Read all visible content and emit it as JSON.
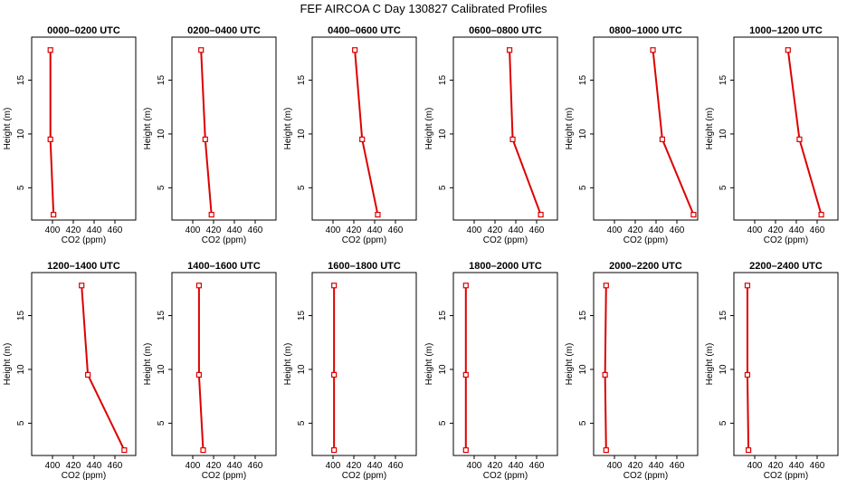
{
  "figure": {
    "title": "FEF AIRCOA C  Day 130827  Calibrated Profiles"
  },
  "chart_data": [
    {
      "type": "line",
      "title": "0000–0200 UTC",
      "xlabel": "CO2 (ppm)",
      "ylabel": "Height (m)",
      "xlim": [
        380,
        480
      ],
      "ylim": [
        2,
        19
      ],
      "xticks": [
        400,
        420,
        440,
        460
      ],
      "yticks": [
        5,
        10,
        15
      ],
      "x": [
        398,
        398,
        401
      ],
      "y": [
        17.8,
        9.5,
        2.5
      ],
      "color": "#dd0000"
    },
    {
      "type": "line",
      "title": "0200–0400 UTC",
      "xlabel": "CO2 (ppm)",
      "ylabel": "Height (m)",
      "xlim": [
        380,
        480
      ],
      "ylim": [
        2,
        19
      ],
      "xticks": [
        400,
        420,
        440,
        460
      ],
      "yticks": [
        5,
        10,
        15
      ],
      "x": [
        408,
        412,
        418
      ],
      "y": [
        17.8,
        9.5,
        2.5
      ],
      "color": "#dd0000"
    },
    {
      "type": "line",
      "title": "0400–0600 UTC",
      "xlabel": "CO2 (ppm)",
      "ylabel": "Height (m)",
      "xlim": [
        380,
        480
      ],
      "ylim": [
        2,
        19
      ],
      "xticks": [
        400,
        420,
        440,
        460
      ],
      "yticks": [
        5,
        10,
        15
      ],
      "x": [
        421,
        428,
        443
      ],
      "y": [
        17.8,
        9.5,
        2.5
      ],
      "color": "#dd0000"
    },
    {
      "type": "line",
      "title": "0600–0800 UTC",
      "xlabel": "CO2 (ppm)",
      "ylabel": "Height (m)",
      "xlim": [
        380,
        480
      ],
      "ylim": [
        2,
        19
      ],
      "xticks": [
        400,
        420,
        440,
        460
      ],
      "yticks": [
        5,
        10,
        15
      ],
      "x": [
        434,
        437,
        464
      ],
      "y": [
        17.8,
        9.5,
        2.5
      ],
      "color": "#dd0000"
    },
    {
      "type": "line",
      "title": "0800–1000 UTC",
      "xlabel": "CO2 (ppm)",
      "ylabel": "Height (m)",
      "xlim": [
        380,
        480
      ],
      "ylim": [
        2,
        19
      ],
      "xticks": [
        400,
        420,
        440,
        460
      ],
      "yticks": [
        5,
        10,
        15
      ],
      "x": [
        437,
        446,
        476
      ],
      "y": [
        17.8,
        9.5,
        2.5
      ],
      "color": "#dd0000"
    },
    {
      "type": "line",
      "title": "1000–1200 UTC",
      "xlabel": "CO2 (ppm)",
      "ylabel": "Height (m)",
      "xlim": [
        380,
        480
      ],
      "ylim": [
        2,
        19
      ],
      "xticks": [
        400,
        420,
        440,
        460
      ],
      "yticks": [
        5,
        10,
        15
      ],
      "x": [
        432,
        443,
        464
      ],
      "y": [
        17.8,
        9.5,
        2.5
      ],
      "color": "#dd0000"
    },
    {
      "type": "line",
      "title": "1200–1400 UTC",
      "xlabel": "CO2 (ppm)",
      "ylabel": "Height (m)",
      "xlim": [
        380,
        480
      ],
      "ylim": [
        2,
        19
      ],
      "xticks": [
        400,
        420,
        440,
        460
      ],
      "yticks": [
        5,
        10,
        15
      ],
      "x": [
        428,
        434,
        469
      ],
      "y": [
        17.8,
        9.5,
        2.5
      ],
      "color": "#dd0000"
    },
    {
      "type": "line",
      "title": "1400–1600 UTC",
      "xlabel": "CO2 (ppm)",
      "ylabel": "Height (m)",
      "xlim": [
        380,
        480
      ],
      "ylim": [
        2,
        19
      ],
      "xticks": [
        400,
        420,
        440,
        460
      ],
      "yticks": [
        5,
        10,
        15
      ],
      "x": [
        406,
        406,
        410
      ],
      "y": [
        17.8,
        9.5,
        2.5
      ],
      "color": "#dd0000"
    },
    {
      "type": "line",
      "title": "1600–1800 UTC",
      "xlabel": "CO2 (ppm)",
      "ylabel": "Height (m)",
      "xlim": [
        380,
        480
      ],
      "ylim": [
        2,
        19
      ],
      "xticks": [
        400,
        420,
        440,
        460
      ],
      "yticks": [
        5,
        10,
        15
      ],
      "x": [
        401,
        401,
        401
      ],
      "y": [
        17.8,
        9.5,
        2.5
      ],
      "color": "#dd0000"
    },
    {
      "type": "line",
      "title": "1800–2000 UTC",
      "xlabel": "CO2 (ppm)",
      "ylabel": "Height (m)",
      "xlim": [
        380,
        480
      ],
      "ylim": [
        2,
        19
      ],
      "xticks": [
        400,
        420,
        440,
        460
      ],
      "yticks": [
        5,
        10,
        15
      ],
      "x": [
        392,
        392,
        392
      ],
      "y": [
        17.8,
        9.5,
        2.5
      ],
      "color": "#dd0000"
    },
    {
      "type": "line",
      "title": "2000–2200 UTC",
      "xlabel": "CO2 (ppm)",
      "ylabel": "Height (m)",
      "xlim": [
        380,
        480
      ],
      "ylim": [
        2,
        19
      ],
      "xticks": [
        400,
        420,
        440,
        460
      ],
      "yticks": [
        5,
        10,
        15
      ],
      "x": [
        392,
        391,
        392
      ],
      "y": [
        17.8,
        9.5,
        2.5
      ],
      "color": "#dd0000"
    },
    {
      "type": "line",
      "title": "2200–2400 UTC",
      "xlabel": "CO2 (ppm)",
      "ylabel": "Height (m)",
      "xlim": [
        380,
        480
      ],
      "ylim": [
        2,
        19
      ],
      "xticks": [
        400,
        420,
        440,
        460
      ],
      "yticks": [
        5,
        10,
        15
      ],
      "x": [
        393,
        393,
        394
      ],
      "y": [
        17.8,
        9.5,
        2.5
      ],
      "color": "#dd0000"
    }
  ]
}
